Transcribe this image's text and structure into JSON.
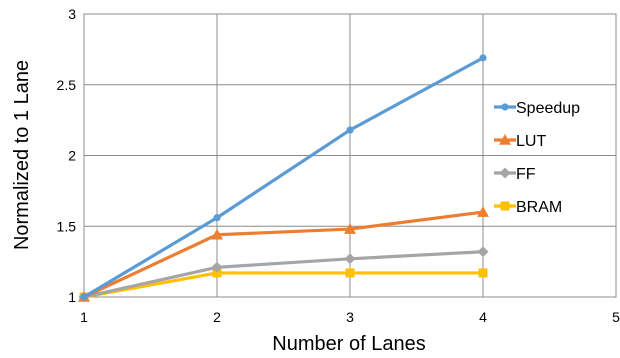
{
  "chart_data": {
    "type": "line",
    "title": "",
    "xlabel": "Number of Lanes",
    "ylabel": "Normalized to 1 Lane",
    "xlim": [
      1,
      5
    ],
    "ylim": [
      1,
      3
    ],
    "x_ticks": [
      1,
      2,
      3,
      4,
      5
    ],
    "y_ticks": [
      1,
      1.5,
      2,
      2.5,
      3
    ],
    "grid": true,
    "legend_position": "right",
    "series": [
      {
        "name": "Speedup",
        "marker": "circle",
        "color": "#5B9BD5",
        "x": [
          1,
          2,
          3,
          4
        ],
        "values": [
          1,
          1.56,
          2.18,
          2.69
        ]
      },
      {
        "name": "LUT",
        "marker": "triangle",
        "color": "#ED7D31",
        "x": [
          1,
          2,
          3,
          4
        ],
        "values": [
          1,
          1.44,
          1.48,
          1.6
        ]
      },
      {
        "name": "FF",
        "marker": "diamond",
        "color": "#A5A5A5",
        "x": [
          1,
          2,
          3,
          4
        ],
        "values": [
          1,
          1.21,
          1.27,
          1.32
        ]
      },
      {
        "name": "BRAM",
        "marker": "square",
        "color": "#FFC000",
        "x": [
          1,
          2,
          3,
          4
        ],
        "values": [
          1,
          1.17,
          1.17,
          1.17
        ]
      }
    ]
  }
}
